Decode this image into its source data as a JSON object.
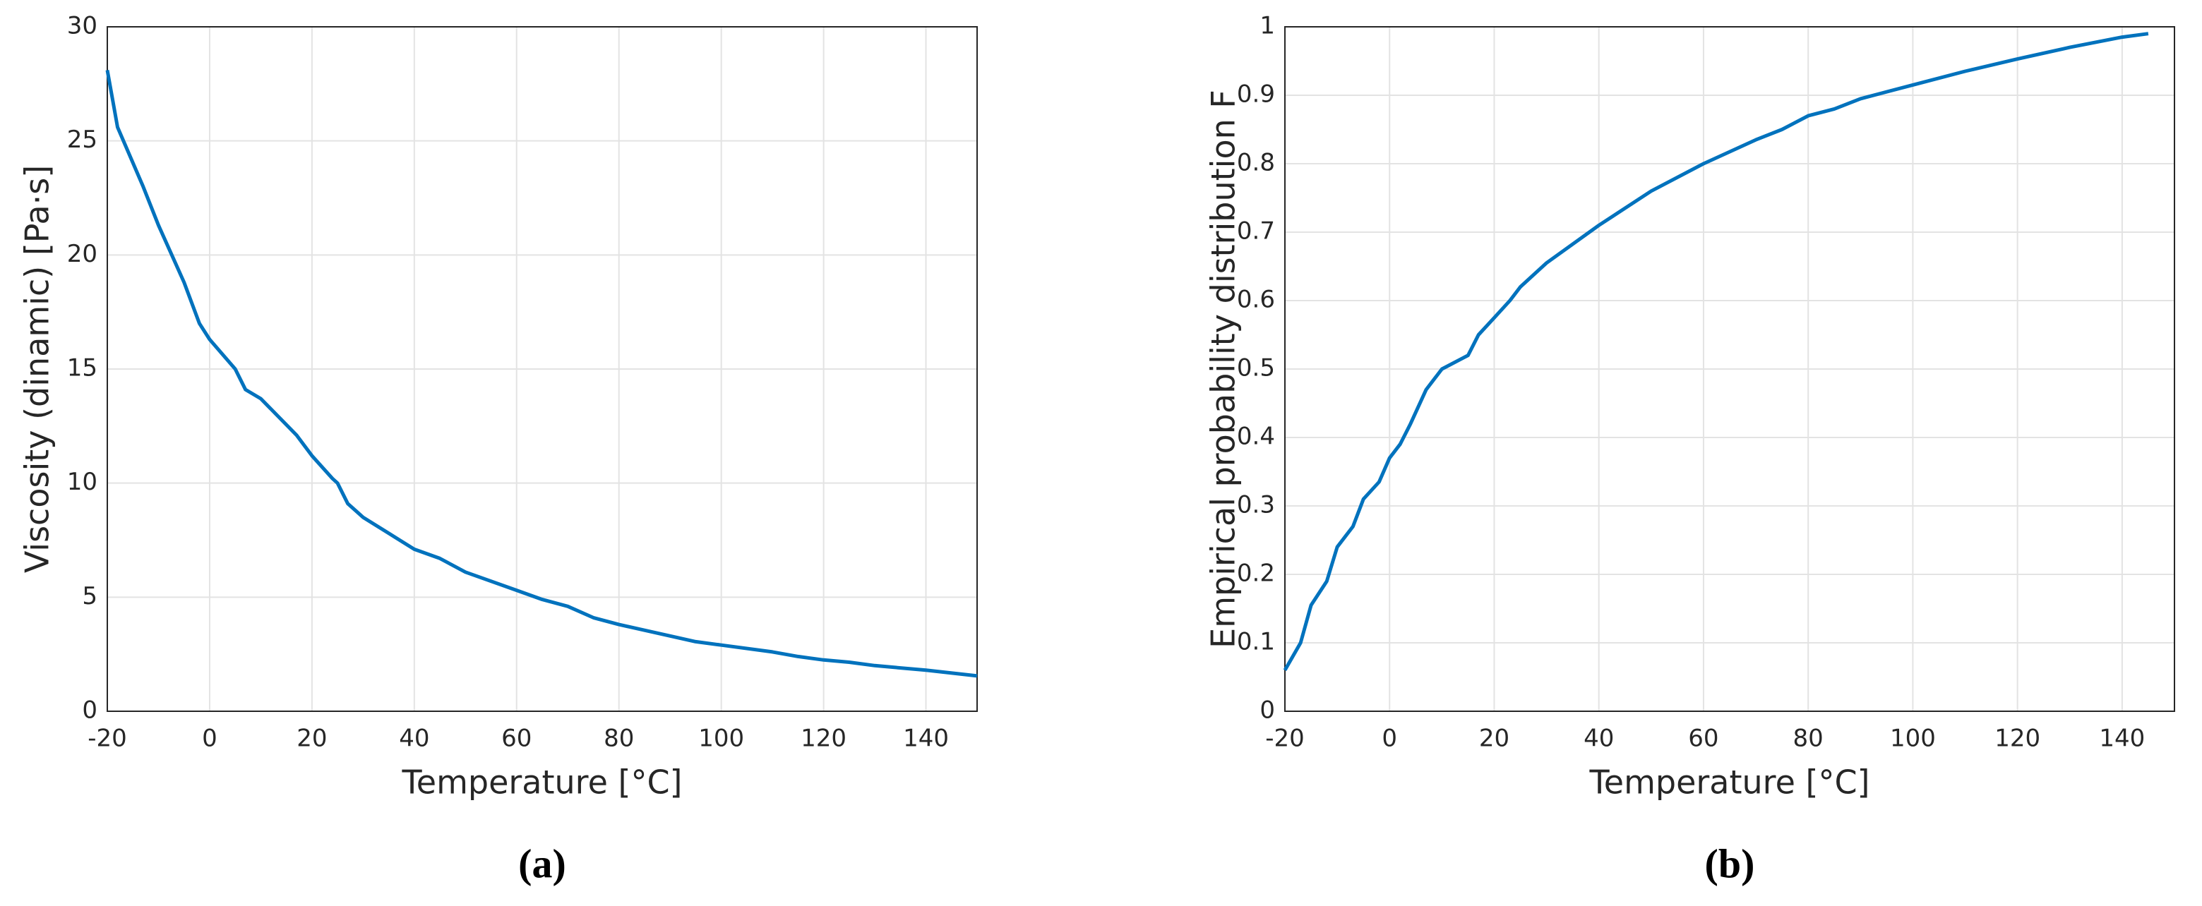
{
  "chart_data": [
    {
      "type": "line",
      "label": "(a)",
      "xlabel": "Temperature [°C]",
      "ylabel": "Viscosity (dinamic) [Pa·s]",
      "x": [
        -20,
        -18,
        -13,
        -10,
        -5,
        -2,
        0,
        5,
        7,
        10,
        17,
        20,
        24,
        25,
        27,
        30,
        35,
        40,
        45,
        50,
        60,
        65,
        70,
        75,
        80,
        90,
        95,
        100,
        110,
        115,
        120,
        125,
        130,
        140,
        150
      ],
      "values": [
        28.1,
        25.6,
        23,
        21.3,
        18.8,
        17,
        16.3,
        15,
        14.1,
        13.7,
        12.1,
        11.2,
        10.2,
        10,
        9.1,
        8.5,
        7.8,
        7.1,
        6.7,
        6.1,
        5.3,
        4.9,
        4.6,
        4.1,
        3.8,
        3.3,
        3.05,
        2.9,
        2.6,
        2.4,
        2.25,
        2.15,
        2.0,
        1.8,
        1.55
      ],
      "color": "#0072bd",
      "xlim": [
        -20,
        150
      ],
      "xticks": [
        -20,
        0,
        20,
        40,
        60,
        80,
        100,
        120,
        140
      ],
      "ylim": [
        0,
        30
      ],
      "yticks": [
        0,
        5,
        10,
        15,
        20,
        25,
        30
      ],
      "grid": true
    },
    {
      "type": "line",
      "label": "(b)",
      "xlabel": "Temperature [°C]",
      "ylabel": "Empirical probability distribution F",
      "x": [
        -20,
        -17,
        -15,
        -12,
        -10,
        -7,
        -5,
        -2,
        0,
        2,
        4,
        7,
        10,
        15,
        17,
        20,
        23,
        25,
        30,
        40,
        50,
        60,
        70,
        75,
        80,
        85,
        90,
        100,
        110,
        120,
        130,
        140,
        145
      ],
      "values": [
        0.06,
        0.1,
        0.155,
        0.19,
        0.24,
        0.27,
        0.31,
        0.335,
        0.37,
        0.39,
        0.42,
        0.47,
        0.5,
        0.52,
        0.55,
        0.575,
        0.6,
        0.62,
        0.655,
        0.71,
        0.76,
        0.8,
        0.835,
        0.85,
        0.87,
        0.88,
        0.895,
        0.915,
        0.935,
        0.953,
        0.97,
        0.985,
        0.99
      ],
      "color": "#0072bd",
      "xlim": [
        -20,
        150
      ],
      "xticks": [
        -20,
        0,
        20,
        40,
        60,
        80,
        100,
        120,
        140
      ],
      "ylim": [
        0,
        1
      ],
      "yticks": [
        0,
        0.1,
        0.2,
        0.3,
        0.4,
        0.5,
        0.6,
        0.7,
        0.8,
        0.9,
        1
      ],
      "grid": true
    }
  ]
}
